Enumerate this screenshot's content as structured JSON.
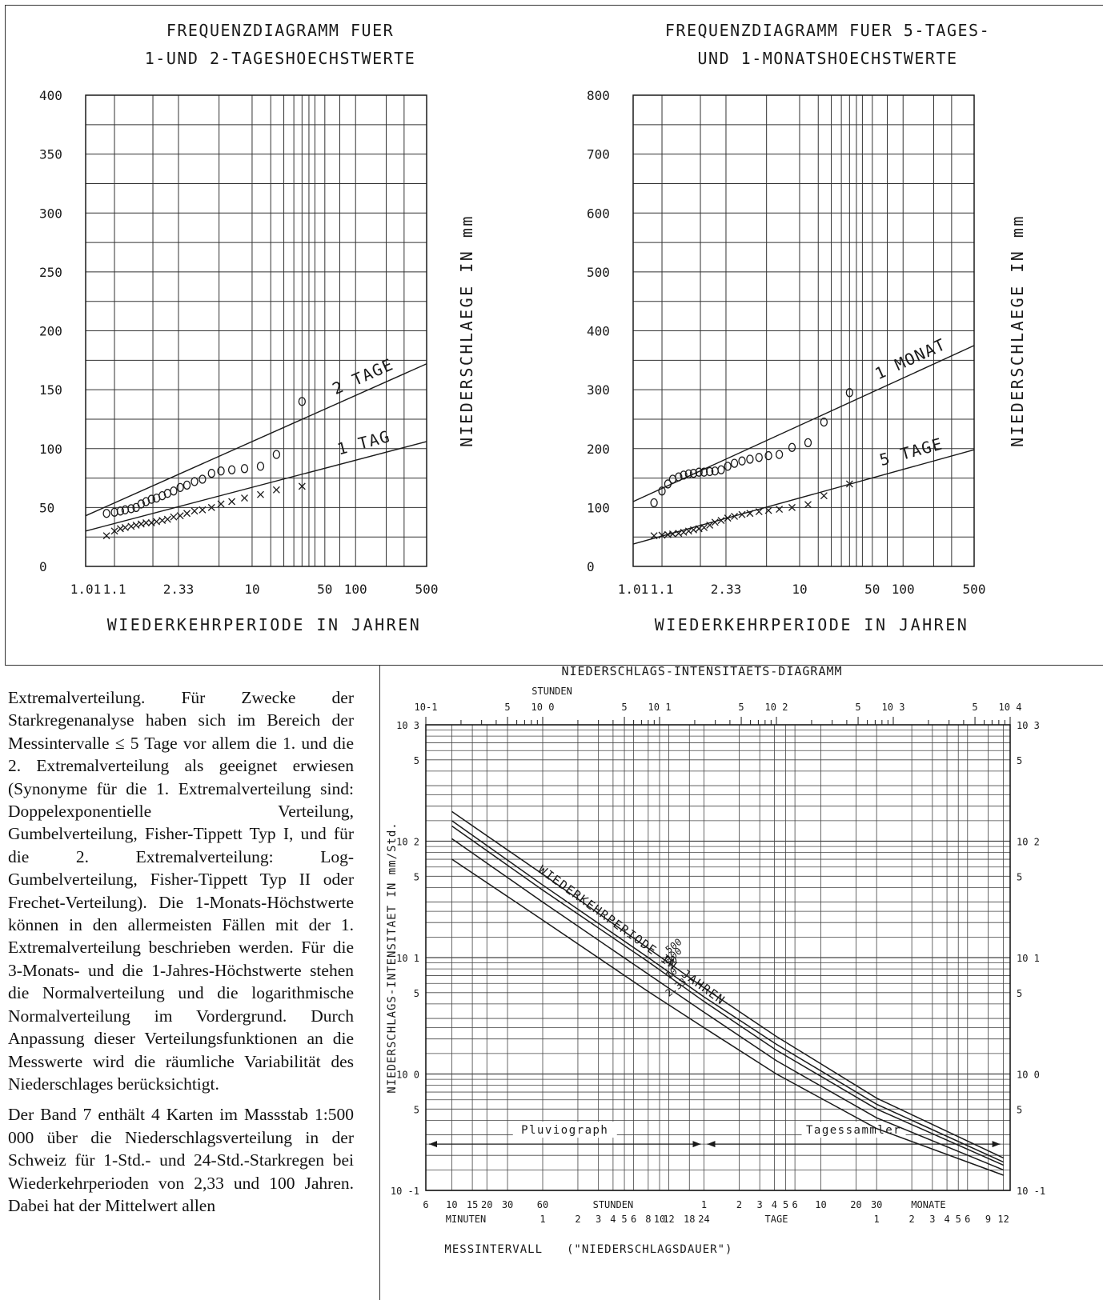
{
  "chart_data": [
    {
      "type": "scatter",
      "title": "FREQUENZDIAGRAMM FUER",
      "subtitle": "1-UND 2-TAGESHOECHSTWERTE",
      "xlabel": "WIEDERKEHRPERIODE IN JAHREN",
      "ylabel": "NIEDERSCHLAEGE IN mm",
      "xscale": "gumbel",
      "x_tick_labels": [
        "1.01",
        "1.1",
        "2.33",
        "10",
        "50",
        "100",
        "500"
      ],
      "x_ticks": [
        1.01,
        1.1,
        2.33,
        10,
        50,
        100,
        500
      ],
      "y_ticks": [
        0,
        50,
        100,
        150,
        200,
        250,
        300,
        350,
        400
      ],
      "ylim": [
        0,
        400
      ],
      "xlim": [
        1.01,
        500
      ],
      "grid": true,
      "lines": [
        {
          "label": "2 TAGE",
          "x": [
            1.01,
            500
          ],
          "y": [
            43,
            172
          ]
        },
        {
          "label": "1 TAG",
          "x": [
            1.01,
            500
          ],
          "y": [
            30,
            106
          ]
        }
      ],
      "series": [
        {
          "marker": "circle-bar",
          "x": [
            1.06,
            1.1,
            1.14,
            1.18,
            1.24,
            1.3,
            1.37,
            1.45,
            1.55,
            1.66,
            1.8,
            1.95,
            2.15,
            2.4,
            2.7,
            3.1,
            3.6,
            4.3,
            5.2,
            6.5,
            8.5,
            12,
            17,
            30
          ],
          "y": [
            45,
            46,
            47,
            48,
            49,
            50,
            53,
            55,
            57,
            58,
            60,
            62,
            64,
            67,
            69,
            72,
            74,
            79,
            81,
            82,
            83,
            85,
            95,
            140
          ]
        },
        {
          "marker": "cross",
          "x": [
            1.06,
            1.1,
            1.14,
            1.18,
            1.24,
            1.3,
            1.37,
            1.45,
            1.55,
            1.66,
            1.8,
            1.95,
            2.15,
            2.4,
            2.7,
            3.1,
            3.6,
            4.3,
            5.2,
            6.5,
            8.5,
            12,
            17,
            30
          ],
          "y": [
            26,
            30,
            32,
            33,
            34,
            35,
            36,
            37,
            37,
            38,
            39,
            40,
            42,
            43,
            45,
            47,
            48,
            50,
            53,
            55,
            58,
            61,
            65,
            68
          ]
        }
      ]
    },
    {
      "type": "scatter",
      "title": "FREQUENZDIAGRAMM FUER 5-TAGES-",
      "subtitle": "UND 1-MONATSHOECHSTWERTE",
      "xlabel": "WIEDERKEHRPERIODE IN JAHREN",
      "ylabel": "NIEDERSCHLAEGE IN mm",
      "xscale": "gumbel",
      "x_tick_labels": [
        "1.01",
        "1.1",
        "2.33",
        "10",
        "50",
        "100",
        "500"
      ],
      "x_ticks": [
        1.01,
        1.1,
        2.33,
        10,
        50,
        100,
        500
      ],
      "y_ticks": [
        0,
        100,
        200,
        300,
        400,
        500,
        600,
        700,
        800
      ],
      "ylim": [
        0,
        800
      ],
      "xlim": [
        1.01,
        500
      ],
      "grid": true,
      "lines": [
        {
          "label": "1 MONAT",
          "x": [
            1.01,
            500
          ],
          "y": [
            110,
            375
          ]
        },
        {
          "label": "5 TAGE",
          "x": [
            1.01,
            500
          ],
          "y": [
            38,
            198
          ]
        }
      ],
      "series": [
        {
          "marker": "circle-bar",
          "x": [
            1.06,
            1.1,
            1.14,
            1.18,
            1.24,
            1.3,
            1.37,
            1.45,
            1.55,
            1.66,
            1.8,
            1.95,
            2.15,
            2.4,
            2.7,
            3.1,
            3.6,
            4.3,
            5.2,
            6.5,
            8.5,
            12,
            17,
            30
          ],
          "y": [
            108,
            128,
            140,
            148,
            152,
            155,
            157,
            158,
            160,
            160,
            161,
            162,
            164,
            170,
            175,
            179,
            182,
            185,
            188,
            190,
            202,
            210,
            245,
            295
          ]
        },
        {
          "marker": "cross",
          "x": [
            1.06,
            1.1,
            1.14,
            1.18,
            1.24,
            1.3,
            1.37,
            1.45,
            1.55,
            1.66,
            1.8,
            1.95,
            2.15,
            2.4,
            2.7,
            3.1,
            3.6,
            4.3,
            5.2,
            6.5,
            8.5,
            12,
            17,
            30
          ],
          "y": [
            52,
            53,
            54,
            55,
            56,
            58,
            60,
            62,
            64,
            66,
            70,
            75,
            78,
            82,
            85,
            88,
            90,
            93,
            95,
            97,
            100,
            105,
            120,
            140
          ]
        }
      ]
    },
    {
      "type": "line",
      "title": "NIEDERSCHLAGS-INTENSITAETS-DIAGRAMM",
      "xlabel": "MESSINTERVALL",
      "xlabel_note": "(\"NIEDERSCHLAGSDAUER\")",
      "ylabel": "NIEDERSCHLAGS-INTENSITAET IN mm/Std.",
      "xscale": "log",
      "yscale": "log",
      "x_unit": "hours",
      "xlim": [
        0.1,
        10000
      ],
      "ylim": [
        0.1,
        1000
      ],
      "top_axis_label": "STUNDEN",
      "top_axis_ticks": [
        "10-1",
        "5",
        "10 0",
        "5",
        "10 1",
        "5",
        "10 2",
        "5",
        "10 3",
        "5",
        "10 4"
      ],
      "y_tick_labels": [
        "10 3",
        "5",
        "10 2",
        "5",
        "10 1",
        "5",
        "10 0",
        "5",
        "10 -1"
      ],
      "bottom_axis": {
        "minuten": [
          "6",
          "10",
          "15",
          "20",
          "30",
          "60"
        ],
        "stunden": [
          "1",
          "2",
          "3",
          "4",
          "5",
          "6",
          "8",
          "10",
          "12",
          "18",
          "24"
        ],
        "tage": [
          "1",
          "2",
          "3",
          "4",
          "5",
          "6",
          "10",
          "20",
          "30"
        ],
        "monate": [
          "1",
          "2",
          "3",
          "4",
          "5",
          "6",
          "9",
          "12"
        ],
        "group_labels": [
          "MINUTEN",
          "STUNDEN",
          "TAGE",
          "MONATE"
        ]
      },
      "annotation": "WIEDERKEHRPERIODE IN JAHREN",
      "ranges": [
        {
          "label": "Pluviograph",
          "from_h": 0.1,
          "to_h": 24
        },
        {
          "label": "Tagessammler",
          "from_h": 24,
          "to_h": 8760
        }
      ],
      "series": [
        {
          "name": "500",
          "x": [
            0.167,
            1,
            8,
            24,
            100,
            720,
            8760
          ],
          "y": [
            180,
            52,
            12,
            5.5,
            2.1,
            0.62,
            0.19
          ]
        },
        {
          "name": "100",
          "x": [
            0.167,
            1,
            8,
            24,
            100,
            720,
            8760
          ],
          "y": [
            150,
            42,
            10,
            4.6,
            1.8,
            0.55,
            0.175
          ]
        },
        {
          "name": "50",
          "x": [
            0.167,
            1,
            8,
            24,
            100,
            720,
            8760
          ],
          "y": [
            135,
            38,
            9.2,
            4.2,
            1.6,
            0.5,
            0.165
          ]
        },
        {
          "name": "10",
          "x": [
            0.167,
            1,
            8,
            24,
            100,
            720,
            8760
          ],
          "y": [
            105,
            30,
            7.2,
            3.4,
            1.3,
            0.42,
            0.15
          ]
        },
        {
          "name": "2.33",
          "x": [
            0.167,
            1,
            8,
            24,
            100,
            720,
            8760
          ],
          "y": [
            70,
            21,
            5.1,
            2.5,
            1.0,
            0.34,
            0.135
          ]
        }
      ]
    }
  ],
  "text": {
    "para1": "Extremalverteilung. Für Zwecke der Starkregenanalyse haben sich im Bereich der Messintervalle ≤ 5 Tage vor allem die 1. und die 2. Extremalverteilung als geeignet erwiesen (Synonyme für die 1. Extremalverteilung sind: Doppelexponentielle Verteilung, Gumbelverteilung, Fisher-Tippett Typ I, und für die 2. Extremalverteilung: Log-Gumbelverteilung, Fisher-Tippett Typ II oder Frechet-Verteilung). Die 1-Monats-Höchstwerte können in den allermeisten Fällen mit der 1. Extremalverteilung beschrieben werden. Für die 3-Monats- und die 1-Jahres-Höchstwerte stehen die Normalverteilung und die logarithmische Normalverteilung im Vordergrund. Durch Anpassung dieser Verteilungsfunktionen an die Messwerte wird die räumliche Variabilität des Niederschlages berücksichtigt.",
    "para2": "Der Band 7 enthält 4 Karten im Massstab 1:500 000 über die Niederschlagsverteilung in der Schweiz für 1-Std.- und 24-Std.-Starkregen bei Wiederkehrperioden von 2,33 und 100 Jahren. Dabei hat der Mittelwert allen"
  },
  "colors": {
    "ink": "#1a1a1a",
    "grid": "#333333"
  }
}
